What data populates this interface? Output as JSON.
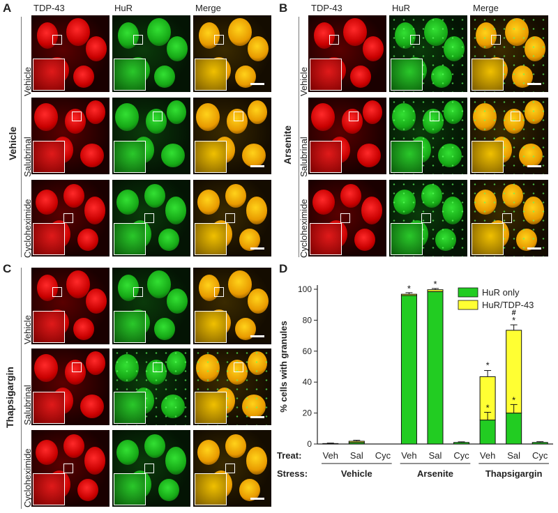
{
  "panels": {
    "A": {
      "letter": "A",
      "group": "Vehicle",
      "headers": [
        "TDP-43",
        "HuR",
        "Merge"
      ],
      "rows": [
        "Vehicle",
        "Salubrinal",
        "Cycloheximide"
      ]
    },
    "B": {
      "letter": "B",
      "group": "Arsenite",
      "headers": [
        "TDP-43",
        "HuR",
        "Merge"
      ],
      "rows": [
        "Vehicle",
        "Salubrinal",
        "Cycloheximide"
      ]
    },
    "C": {
      "letter": "C",
      "group": "Thapsigargin",
      "rows": [
        "Vehicle",
        "Salubrinal",
        "Cycloheximide"
      ]
    },
    "D": {
      "letter": "D"
    }
  },
  "colors": {
    "tdp43": "#e01010",
    "hur": "#22c022",
    "merge": "#e8b000",
    "hur_only": "#22cc22",
    "hur_tdp43": "#ffff33"
  },
  "chart_data": {
    "type": "bar",
    "stacked": true,
    "ylabel": "% cells with granules",
    "ylim": [
      0,
      100
    ],
    "yticks": [
      0,
      20,
      40,
      60,
      80,
      100
    ],
    "treat_label": "Treat:",
    "stress_label": "Stress:",
    "categories": [
      "Veh",
      "Sal",
      "Cyc",
      "Veh",
      "Sal",
      "Cyc",
      "Veh",
      "Sal",
      "Cyc"
    ],
    "stress_groups": [
      "Vehicle",
      "Arsenite",
      "Thapsigargin"
    ],
    "series": [
      {
        "name": "HuR only",
        "values": [
          0.3,
          1.0,
          0,
          96,
          98.5,
          1.0,
          15.5,
          20,
          1.0
        ]
      },
      {
        "name": "HuR/TDP-43",
        "values": [
          0,
          0.8,
          0,
          0.8,
          1.2,
          0,
          28,
          53.5,
          0
        ]
      }
    ],
    "error_bars": {
      "HuR only": [
        0.3,
        0.6,
        0,
        1.0,
        0.8,
        0.4,
        5,
        5.5,
        0.5
      ],
      "total": [
        0.3,
        1.0,
        0,
        0.8,
        0.8,
        0,
        4,
        3.5,
        0
      ]
    },
    "annotations": {
      "star": "*",
      "hash": "#"
    },
    "legend": "top-right"
  }
}
